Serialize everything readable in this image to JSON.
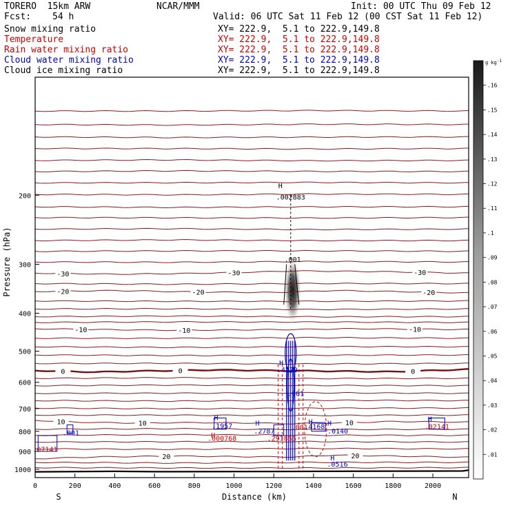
{
  "header": {
    "model": "TORERO  15km ARW",
    "center": "NCAR/MMM",
    "init": "Init: 00 UTC Thu 09 Feb 12",
    "fcst_label": "Fcst:",
    "fcst_value": "54 h",
    "valid": "Valid: 06 UTC Sat 11 Feb 12 (00 CST Sat 11 Feb 12)"
  },
  "legend": [
    {
      "name": "Snow mixing ratio",
      "xy": "XY= 222.9,  5.1 to 222.9,149.8",
      "color": "#000000"
    },
    {
      "name": "Temperature",
      "xy": "XY= 222.9,  5.1 to 222.9,149.8",
      "color": "#cc0000"
    },
    {
      "name": "Rain water mixing ratio",
      "xy": "XY= 222.9,  5.1 to 222.9,149.8",
      "color": "#cc0000"
    },
    {
      "name": "Cloud water mixing ratio",
      "xy": "XY= 222.9,  5.1 to 222.9,149.8",
      "color": "#0000cc"
    },
    {
      "name": "Cloud ice mixing ratio",
      "xy": "XY= 222.9,  5.1 to 222.9,149.8",
      "color": "#000000"
    }
  ],
  "chart_data": {
    "type": "cross-section contour",
    "xlabel": "Distance (km)",
    "ylabel": "Pressure (hPa)",
    "x_ticks": [
      0,
      200,
      400,
      600,
      800,
      1000,
      1200,
      1400,
      1600,
      1800,
      2000
    ],
    "xlim": [
      0,
      2180
    ],
    "y_ticks": [
      200,
      300,
      400,
      500,
      600,
      700,
      800,
      900,
      1000
    ],
    "ylim": [
      1050,
      100
    ],
    "y_scale": "log",
    "left_end_label": "S",
    "right_end_label": "N",
    "colorbar": {
      "unit": "g kg",
      "unit_exp": "-1",
      "ticks": [
        ".01",
        ".02",
        ".03",
        ".04",
        ".05",
        ".06",
        ".07",
        ".08",
        ".09",
        ".1",
        ".11",
        ".12",
        ".13",
        ".14",
        ".15",
        ".16"
      ]
    },
    "temperature_label_rows": [
      {
        "label": "-30",
        "p": 316,
        "x": [
          140,
          1000,
          1935
        ],
        "line_x": [
          0,
          400,
          700,
          1000,
          1300,
          1700,
          2180
        ],
        "line_p": [
          316,
          318,
          317,
          315,
          312,
          313,
          316
        ]
      },
      {
        "label": "-20",
        "p": 352,
        "x": [
          140,
          820,
          1980
        ],
        "line_x": [
          0,
          400,
          800,
          1200,
          1500,
          1800,
          2180
        ],
        "line_p": [
          352,
          350,
          353,
          354,
          350,
          352,
          355
        ]
      },
      {
        "label": "-10",
        "p": 440,
        "x": [
          230,
          750,
          1910
        ],
        "line_x": [
          0,
          300,
          700,
          1000,
          1300,
          1600,
          2180
        ],
        "line_p": [
          438,
          440,
          442,
          441,
          440,
          438,
          440
        ]
      },
      {
        "label": "0",
        "p": 560,
        "x": [
          140,
          730,
          1900
        ],
        "line_x": [
          0,
          300,
          500,
          700,
          900,
          1200,
          1500,
          1800,
          2180
        ],
        "line_p": [
          560,
          565,
          562,
          560,
          558,
          560,
          562,
          564,
          556
        ]
      },
      {
        "label": "10",
        "p": 758,
        "x": [
          130,
          540,
          1580
        ],
        "line_x": [
          0,
          200,
          500,
          800,
          1100,
          1300,
          1600,
          1800,
          2180
        ],
        "line_p": [
          750,
          758,
          762,
          760,
          762,
          765,
          760,
          755,
          758
        ]
      },
      {
        "label": "20",
        "p": 924,
        "x": [
          660,
          1610
        ],
        "line_x": [
          0,
          300,
          700,
          1000,
          1300,
          1500,
          1800,
          2180
        ],
        "line_p": [
          940,
          930,
          925,
          928,
          930,
          920,
          925,
          932
        ]
      }
    ],
    "temperature_rows_unlabeled_p": [
      122,
      132,
      142,
      152,
      163,
      174,
      186,
      199,
      214,
      228,
      244,
      261,
      278,
      296,
      336,
      372,
      390,
      408,
      422,
      463,
      487,
      511,
      537,
      586,
      612,
      640,
      668,
      698,
      727,
      790,
      819,
      852,
      887,
      960,
      990
    ],
    "surface_line": {
      "x": [
        0,
        400,
        600,
        1200,
        1800,
        2150,
        2180
      ],
      "p": [
        1015,
        1012,
        1014,
        1013,
        1011,
        1010,
        1005
      ]
    },
    "snow_plume": {
      "x_center": 1295,
      "p_top": 280,
      "p_bottom": 420,
      "max": 0.14
    },
    "annotations": [
      {
        "text": "H",
        "x": 1233,
        "p": 192,
        "color": "#000000"
      },
      {
        "text": ".002883",
        "x": 1285,
        "p": 205,
        "color": "#000000"
      },
      {
        "text": ".001",
        "x": 1295,
        "p": 296,
        "color": "#000000"
      },
      {
        "text": "H",
        "x": 1238,
        "p": 543,
        "color": "#0000cc"
      },
      {
        "text": ".4279",
        "x": 1268,
        "p": 565,
        "color": "#0000cc"
      },
      {
        "text": ".001",
        "x": 1310,
        "p": 650,
        "color": "#0000cc"
      },
      {
        "text": ".001",
        "x": 1330,
        "p": 792,
        "color": "#cc0000"
      },
      {
        "text": ".001",
        "x": 180,
        "p": 818,
        "color": "#0000cc"
      },
      {
        "text": "H",
        "x": 910,
        "p": 749,
        "color": "#0000cc"
      },
      {
        "text": ".1957",
        "x": 940,
        "p": 786,
        "color": "#0000cc"
      },
      {
        "text": "H",
        "x": 895,
        "p": 830,
        "color": "#cc0000"
      },
      {
        "text": ".000768",
        "x": 940,
        "p": 846,
        "color": "#cc0000"
      },
      {
        "text": "H",
        "x": 1118,
        "p": 773,
        "color": "#0000cc"
      },
      {
        "text": ".2787",
        "x": 1152,
        "p": 810,
        "color": "#0000cc"
      },
      {
        "text": ".291866",
        "x": 1240,
        "p": 846,
        "color": "#cc0000"
      },
      {
        "text": "H",
        "x": 1385,
        "p": 768,
        "color": "#0000cc"
      },
      {
        "text": ".4168",
        "x": 1405,
        "p": 790,
        "color": "#0000cc"
      },
      {
        "text": "H",
        "x": 1480,
        "p": 773,
        "color": "#0000cc"
      },
      {
        "text": ".0140",
        "x": 1522,
        "p": 810,
        "color": "#0000cc"
      },
      {
        "text": "H",
        "x": 1985,
        "p": 755,
        "color": "#0000cc"
      },
      {
        "text": ".02141",
        "x": 2020,
        "p": 790,
        "color": "#cc0000"
      },
      {
        "text": "H",
        "x": 1495,
        "p": 949,
        "color": "#0000cc"
      },
      {
        "text": ".0516",
        "x": 1520,
        "p": 985,
        "color": "#0000cc"
      },
      {
        "text": ".07141",
        "x": 50,
        "p": 902,
        "color": "#cc0000"
      }
    ]
  }
}
